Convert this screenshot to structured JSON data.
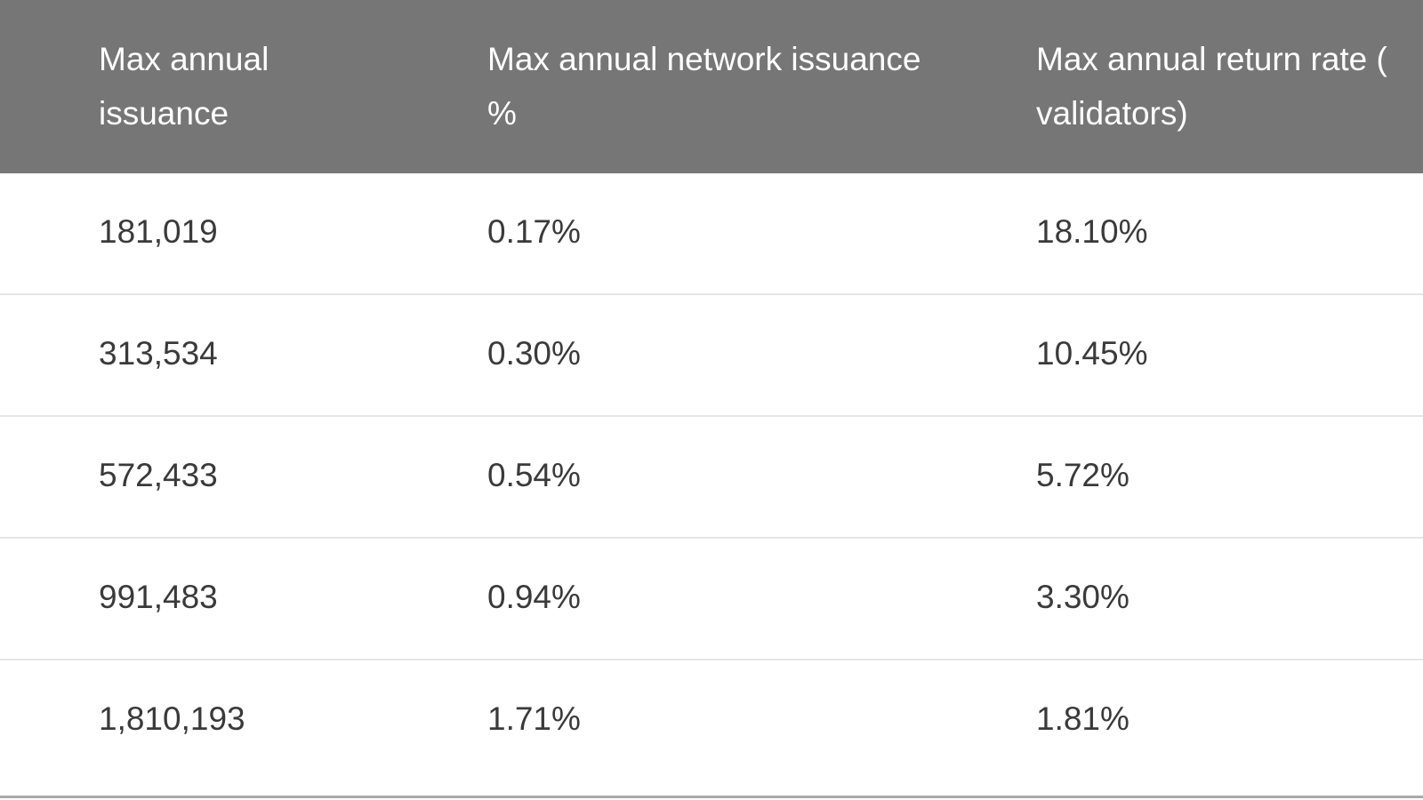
{
  "table": {
    "headers": [
      {
        "lines": [
          "Max annual",
          "issuance"
        ]
      },
      {
        "lines": [
          "Max annual network issuance",
          "%"
        ]
      },
      {
        "lines": [
          "Max annual return rate (",
          "validators)"
        ]
      }
    ],
    "rows": [
      [
        "181,019",
        "0.17%",
        "18.10%"
      ],
      [
        "313,534",
        "0.30%",
        "10.45%"
      ],
      [
        "572,433",
        "0.54%",
        "5.72%"
      ],
      [
        "991,483",
        "0.94%",
        "3.30%"
      ],
      [
        "1,810,193",
        "1.71%",
        "1.81%"
      ]
    ]
  }
}
